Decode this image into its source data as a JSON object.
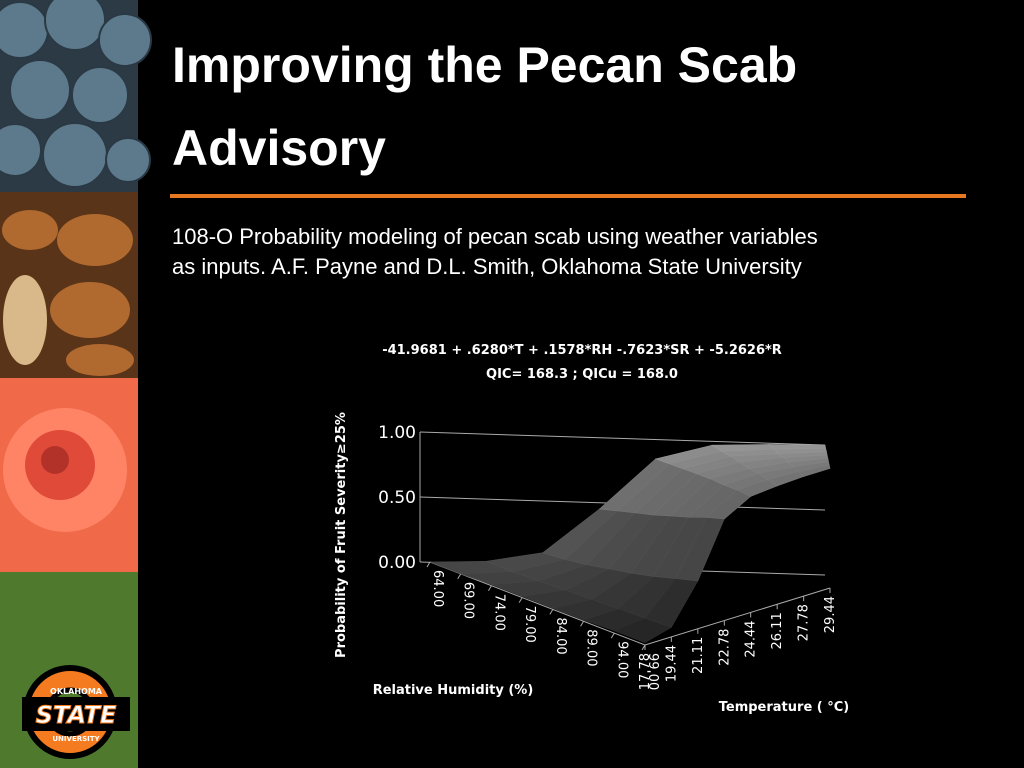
{
  "slide": {
    "title_lines": [
      "Improving the Pecan Scab",
      "Advisory"
    ],
    "subtitle_lines": [
      "108-O Probability modeling of pecan scab using weather variables",
      "as inputs.  A.F. Payne and D.L. Smith, Oklahoma State University"
    ],
    "logo": {
      "top": "OKLAHOMA",
      "main": "STATE",
      "bottom": "UNIVERSITY"
    }
  },
  "chart_data": {
    "type": "surface",
    "title_lines": [
      "-41.9681 + .6280*T + .1578*RH -.7623*SR + -5.2626*R",
      "QIC= 168.3 ; QICu = 168.0"
    ],
    "z_label": "Probability of Fruit Severity≥25%",
    "x_label": "Relative Humidity (%)",
    "y_label": "Temperature ( °C)",
    "x": [
      {
        "value": 64,
        "label": "64.00"
      },
      {
        "value": 69,
        "label": "69.00"
      },
      {
        "value": 74,
        "label": "74.00"
      },
      {
        "value": 79,
        "label": "79.00"
      },
      {
        "value": 84,
        "label": "84.00"
      },
      {
        "value": 89,
        "label": "89.00"
      },
      {
        "value": 94,
        "label": "94.00"
      },
      {
        "value": 99,
        "label": "99.00"
      }
    ],
    "y": [
      17.78,
      19.44,
      21.11,
      22.78,
      24.44,
      26.11,
      27.78,
      29.44
    ],
    "zlim": [
      0,
      1
    ],
    "zticks": [
      {
        "value": 0,
        "label": "0.00"
      },
      {
        "value": 0.5,
        "label": "0.50"
      },
      {
        "value": 1,
        "label": "1.00"
      }
    ],
    "values": [
      [
        0.0,
        0.02,
        0.1,
        0.45,
        0.85,
        0.97,
        0.99,
        1.0
      ],
      [
        0.0,
        0.02,
        0.12,
        0.5,
        0.87,
        0.97,
        0.99,
        1.0
      ],
      [
        0.01,
        0.03,
        0.15,
        0.55,
        0.89,
        0.98,
        0.99,
        1.0
      ],
      [
        0.01,
        0.04,
        0.19,
        0.6,
        0.91,
        0.98,
        1.0,
        1.0
      ],
      [
        0.01,
        0.05,
        0.23,
        0.66,
        0.93,
        0.98,
        1.0,
        1.0
      ],
      [
        0.01,
        0.06,
        0.28,
        0.72,
        0.94,
        0.99,
        1.0,
        1.0
      ],
      [
        0.02,
        0.07,
        0.34,
        0.79,
        0.96,
        0.99,
        1.0,
        1.0
      ],
      [
        0.02,
        0.08,
        0.4,
        0.85,
        0.97,
        0.99,
        1.0,
        1.0
      ]
    ]
  }
}
